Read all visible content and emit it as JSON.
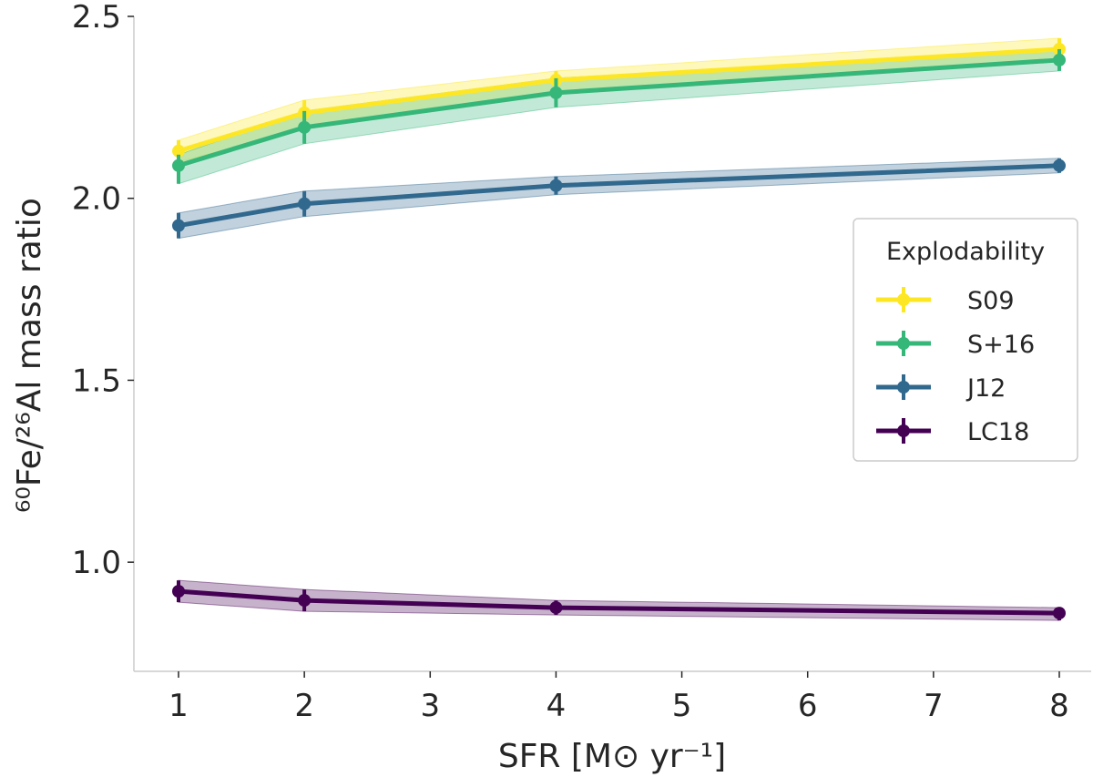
{
  "chart_data": {
    "type": "line",
    "x": [
      1,
      2,
      4,
      8
    ],
    "xtick_labels": [
      "1",
      "2",
      "3",
      "4",
      "5",
      "6",
      "7",
      "8"
    ],
    "ytick_values": [
      1.0,
      1.5,
      2.0,
      2.5
    ],
    "ytick_labels": [
      "1.0",
      "1.5",
      "2.0",
      "2.5"
    ],
    "ylim": [
      0.7,
      2.5
    ],
    "xlabel": "SFR [M⊙ yr⁻¹]",
    "ylabel": "⁶⁰Fe/²⁶Al mass ratio",
    "legend": {
      "title": "Explodability",
      "position": "center-right"
    },
    "series": [
      {
        "name": "S09",
        "color": "#fde725",
        "values": [
          2.13,
          2.235,
          2.325,
          2.41
        ],
        "lower": [
          2.1,
          2.19,
          2.29,
          2.38
        ],
        "upper": [
          2.16,
          2.27,
          2.35,
          2.44
        ]
      },
      {
        "name": "S+16",
        "color": "#35b779",
        "values": [
          2.09,
          2.195,
          2.29,
          2.38
        ],
        "lower": [
          2.04,
          2.15,
          2.25,
          2.35
        ],
        "upper": [
          2.12,
          2.24,
          2.33,
          2.41
        ]
      },
      {
        "name": "J12",
        "color": "#31688e",
        "values": [
          1.925,
          1.985,
          2.035,
          2.09
        ],
        "lower": [
          1.89,
          1.95,
          2.01,
          2.07
        ],
        "upper": [
          1.96,
          2.02,
          2.06,
          2.11
        ]
      },
      {
        "name": "LC18",
        "color": "#440154",
        "values": [
          0.92,
          0.895,
          0.875,
          0.86
        ],
        "lower": [
          0.89,
          0.865,
          0.855,
          0.84
        ],
        "upper": [
          0.95,
          0.925,
          0.895,
          0.875
        ]
      }
    ]
  }
}
